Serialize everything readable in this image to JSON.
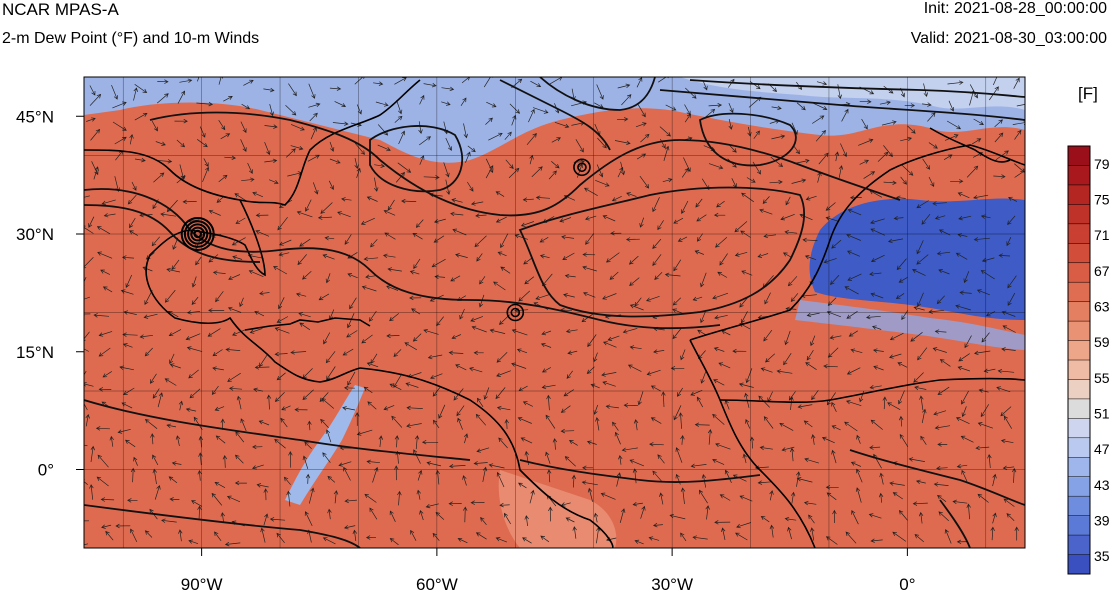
{
  "header": {
    "model": "NCAR MPAS-A",
    "field": "2-m Dew Point (°F) and 10-m Winds",
    "init": "Init: 2021-08-28_00:00:00",
    "valid": "Valid: 2021-08-30_03:00:00"
  },
  "map": {
    "lon_range": [
      -105,
      15
    ],
    "lat_range": [
      -10,
      50
    ],
    "lon_ticks": [
      -90,
      -60,
      -30,
      0
    ],
    "lon_tick_labels": [
      "90°W",
      "60°W",
      "30°W",
      "0°"
    ],
    "lat_ticks": [
      45,
      30,
      15,
      0
    ],
    "lat_tick_labels": [
      "45°N",
      "30°N",
      "15°N",
      "0°"
    ],
    "grid_lines": true,
    "land_color": "#d9583f",
    "ocean_color": "#de6b50",
    "cool_color": "#3f63c9",
    "cyclone_centers": [
      {
        "name": "",
        "lon": -90.5,
        "lat": 30.0
      },
      {
        "name": "",
        "lon": -50.0,
        "lat": 20.0
      },
      {
        "name": "",
        "lon": -41.5,
        "lat": 38.5
      }
    ]
  },
  "colorbar": {
    "unit_label": "[F]",
    "labels": [
      "79",
      "75",
      "71",
      "67",
      "63",
      "59",
      "55",
      "51",
      "47",
      "43",
      "39",
      "35"
    ],
    "min": 33,
    "max": 81,
    "colors": [
      "#3a4fc0",
      "#4a64cc",
      "#5b79d6",
      "#6e8ddf",
      "#86a2e6",
      "#9fb6ec",
      "#b9c9ef",
      "#cdd6ee",
      "#dcdcdc",
      "#ecd0c2",
      "#efbba4",
      "#eea68b",
      "#ea9274",
      "#e57f61",
      "#df6d52",
      "#d95c45",
      "#d24d3a",
      "#c93f31",
      "#bf3229",
      "#b42622",
      "#a8181c",
      "#9a0f1a"
    ]
  }
}
